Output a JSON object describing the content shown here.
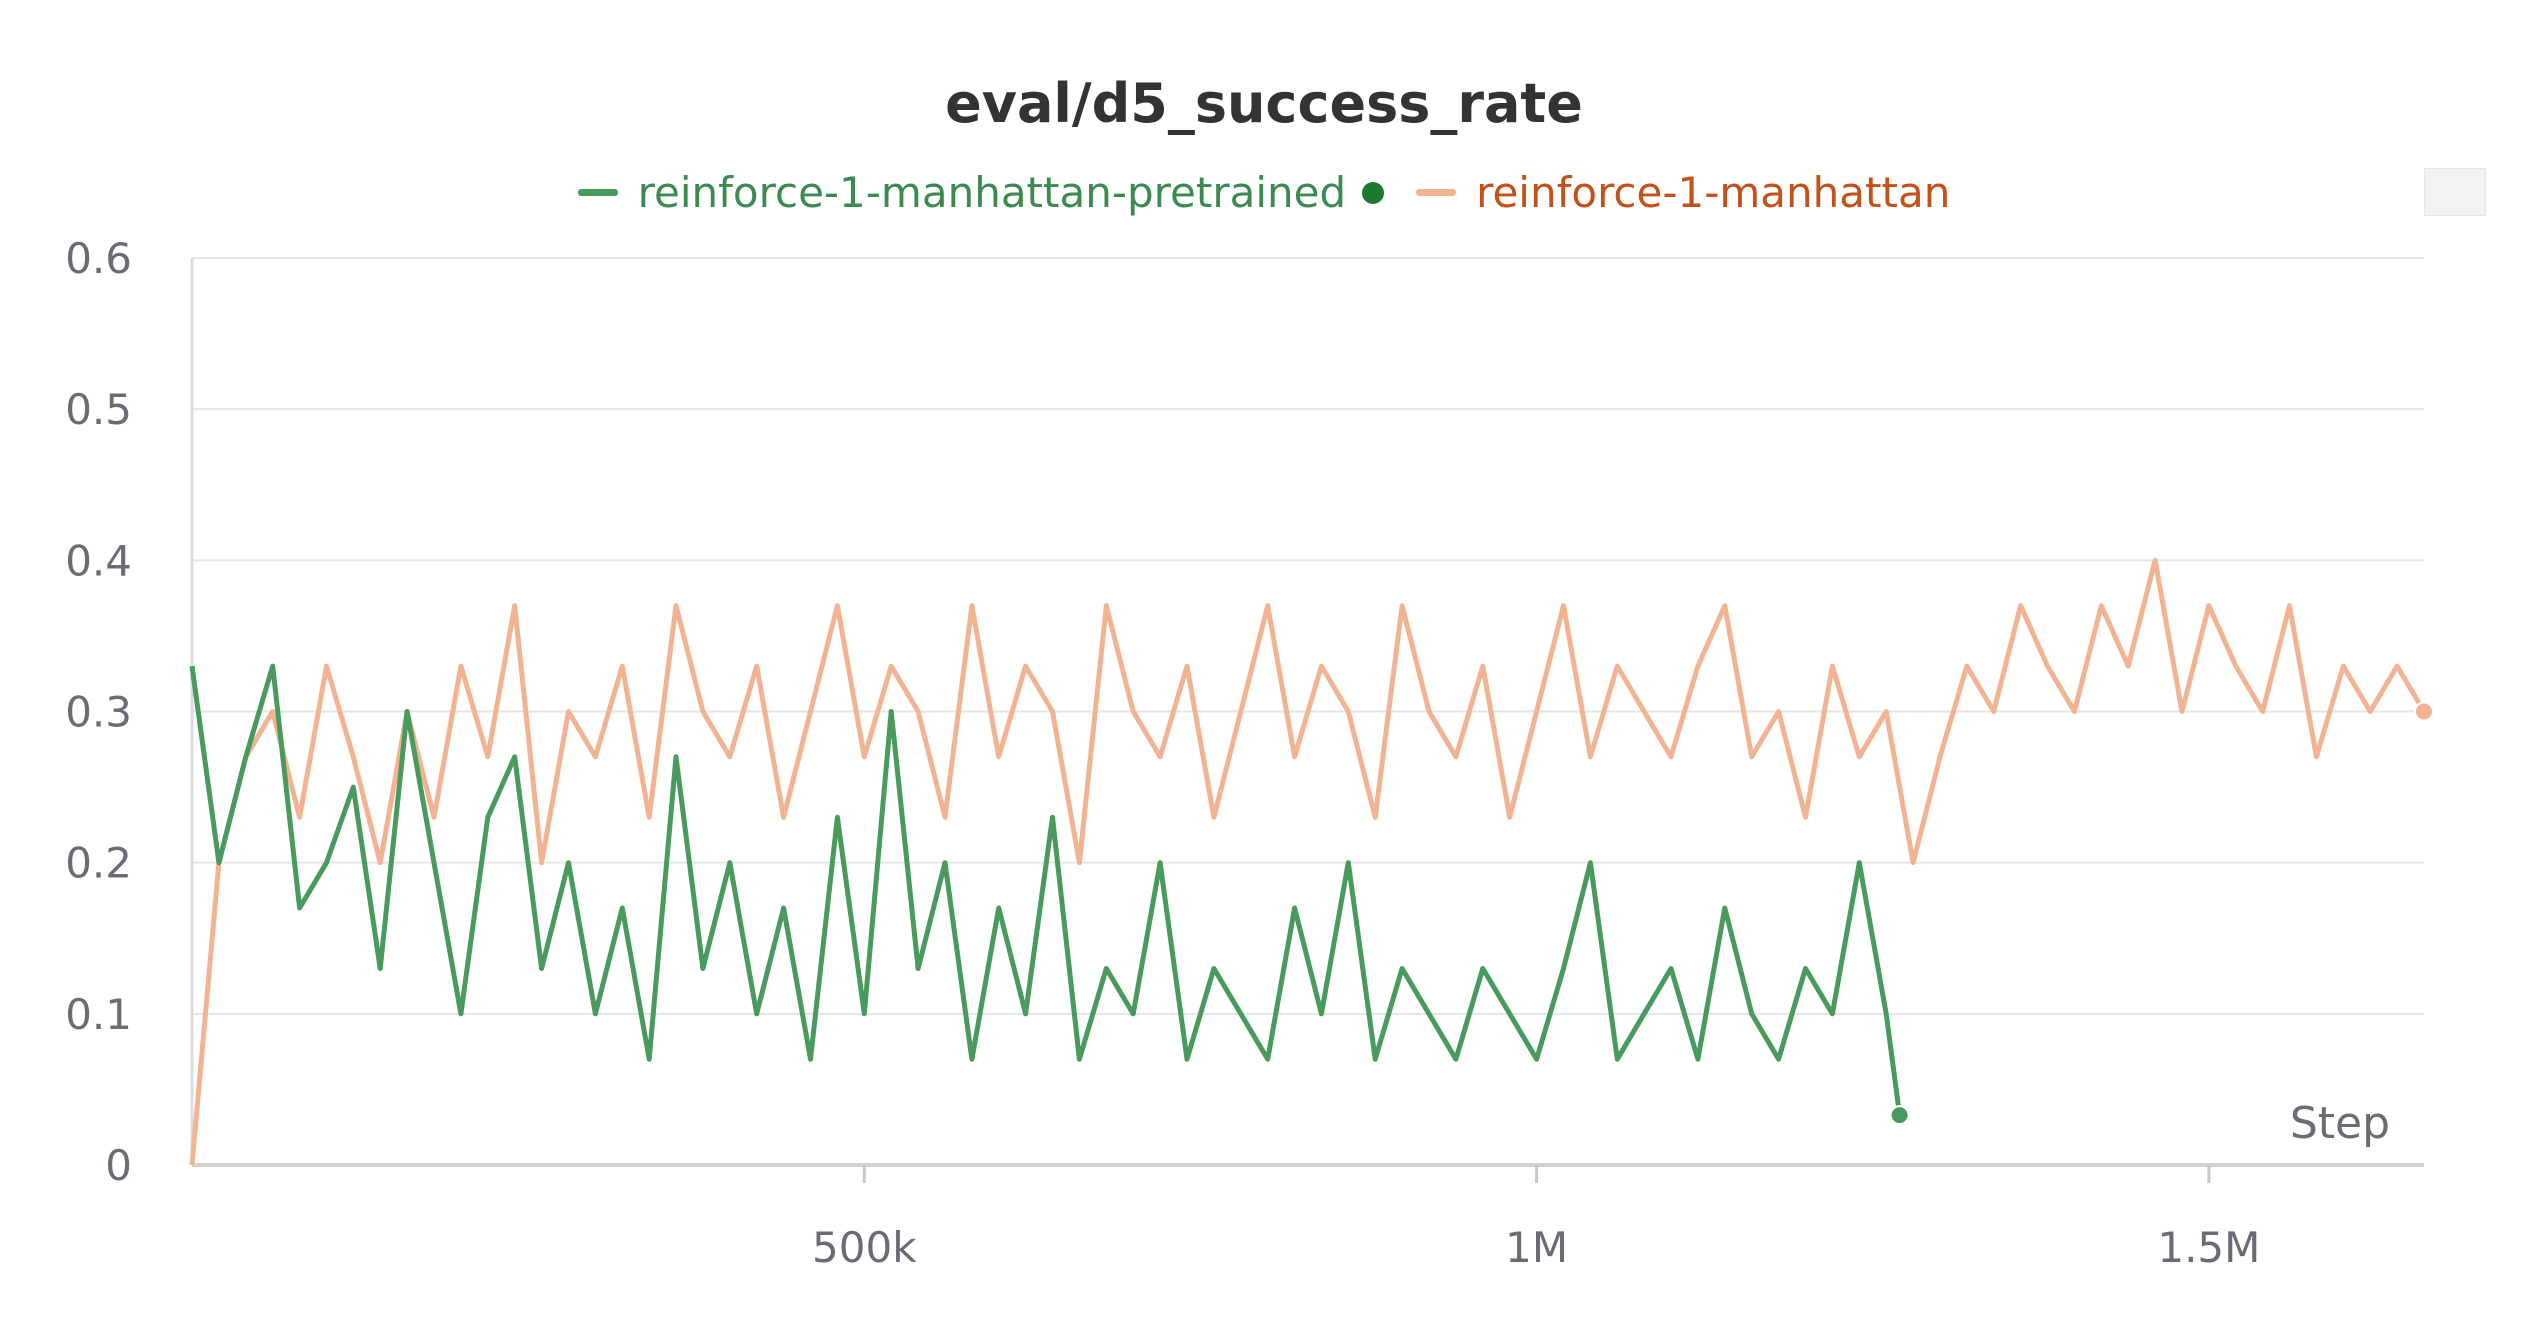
{
  "chart_data": {
    "type": "line",
    "title": "eval/d5_success_rate",
    "xlabel": "Step",
    "ylabel": "",
    "xlim": [
      0,
      1660000
    ],
    "ylim": [
      0,
      0.6
    ],
    "x_ticks": [
      500000,
      1000000,
      1500000
    ],
    "x_tick_labels": [
      "500k",
      "1M",
      "1.5M"
    ],
    "y_ticks": [
      0,
      0.1,
      0.2,
      0.3,
      0.4,
      0.5,
      0.6
    ],
    "y_tick_labels": [
      "0",
      "0.1",
      "0.2",
      "0.3",
      "0.4",
      "0.5",
      "0.6"
    ],
    "grid": true,
    "legend_position": "top",
    "series": [
      {
        "name": "reinforce-1-manhattan-pretrained",
        "color": "#489a5d",
        "x": [
          0,
          20000,
          40000,
          60000,
          80000,
          100000,
          120000,
          140000,
          160000,
          180000,
          200000,
          220000,
          240000,
          260000,
          280000,
          300000,
          320000,
          340000,
          360000,
          380000,
          400000,
          420000,
          440000,
          460000,
          480000,
          500000,
          520000,
          540000,
          560000,
          580000,
          600000,
          620000,
          640000,
          660000,
          680000,
          700000,
          720000,
          740000,
          760000,
          780000,
          800000,
          820000,
          840000,
          860000,
          880000,
          900000,
          920000,
          940000,
          960000,
          980000,
          1000000,
          1020000,
          1040000,
          1060000,
          1080000,
          1100000,
          1120000,
          1140000,
          1160000,
          1180000,
          1200000,
          1220000,
          1240000,
          1260000,
          1270000
        ],
        "values": [
          0.33,
          0.2,
          0.27,
          0.33,
          0.17,
          0.2,
          0.25,
          0.13,
          0.3,
          0.2,
          0.1,
          0.23,
          0.27,
          0.13,
          0.2,
          0.1,
          0.17,
          0.07,
          0.27,
          0.13,
          0.2,
          0.1,
          0.17,
          0.07,
          0.23,
          0.1,
          0.3,
          0.13,
          0.2,
          0.07,
          0.17,
          0.1,
          0.23,
          0.07,
          0.13,
          0.1,
          0.2,
          0.07,
          0.13,
          0.1,
          0.07,
          0.17,
          0.1,
          0.2,
          0.07,
          0.13,
          0.1,
          0.07,
          0.13,
          0.1,
          0.07,
          0.13,
          0.2,
          0.07,
          0.1,
          0.13,
          0.07,
          0.17,
          0.1,
          0.07,
          0.13,
          0.1,
          0.2,
          0.1,
          0.033
        ]
      },
      {
        "name": "reinforce-1-manhattan",
        "color": "#f2b393",
        "x": [
          0,
          20000,
          40000,
          60000,
          80000,
          100000,
          120000,
          140000,
          160000,
          180000,
          200000,
          220000,
          240000,
          260000,
          280000,
          300000,
          320000,
          340000,
          360000,
          380000,
          400000,
          420000,
          440000,
          460000,
          480000,
          500000,
          520000,
          540000,
          560000,
          580000,
          600000,
          620000,
          640000,
          660000,
          680000,
          700000,
          720000,
          740000,
          760000,
          780000,
          800000,
          820000,
          840000,
          860000,
          880000,
          900000,
          920000,
          940000,
          960000,
          980000,
          1000000,
          1020000,
          1040000,
          1060000,
          1080000,
          1100000,
          1120000,
          1140000,
          1160000,
          1180000,
          1200000,
          1220000,
          1240000,
          1260000,
          1280000,
          1300000,
          1320000,
          1340000,
          1360000,
          1380000,
          1400000,
          1420000,
          1440000,
          1460000,
          1480000,
          1500000,
          1520000,
          1540000,
          1560000,
          1580000,
          1600000,
          1620000,
          1640000,
          1660000
        ],
        "values": [
          0.0,
          0.2,
          0.27,
          0.3,
          0.23,
          0.33,
          0.27,
          0.2,
          0.3,
          0.23,
          0.33,
          0.27,
          0.37,
          0.2,
          0.3,
          0.27,
          0.33,
          0.23,
          0.37,
          0.3,
          0.27,
          0.33,
          0.23,
          0.3,
          0.37,
          0.27,
          0.33,
          0.3,
          0.23,
          0.37,
          0.27,
          0.33,
          0.3,
          0.2,
          0.37,
          0.3,
          0.27,
          0.33,
          0.23,
          0.3,
          0.37,
          0.27,
          0.33,
          0.3,
          0.23,
          0.37,
          0.3,
          0.27,
          0.33,
          0.23,
          0.3,
          0.37,
          0.27,
          0.33,
          0.3,
          0.27,
          0.33,
          0.37,
          0.27,
          0.3,
          0.23,
          0.33,
          0.27,
          0.3,
          0.2,
          0.27,
          0.33,
          0.3,
          0.37,
          0.33,
          0.3,
          0.37,
          0.33,
          0.4,
          0.3,
          0.37,
          0.33,
          0.3,
          0.37,
          0.27,
          0.33,
          0.3,
          0.33,
          0.3
        ]
      }
    ]
  },
  "legend": {
    "items": [
      {
        "label": "reinforce-1-manhattan-pretrained",
        "color": "#489a5d",
        "text_color": "#3b8a4f",
        "dot_color": "#1b7a2b"
      },
      {
        "label": "reinforce-1-manhattan",
        "color": "#f2b393",
        "text_color": "#c4501a"
      }
    ]
  }
}
